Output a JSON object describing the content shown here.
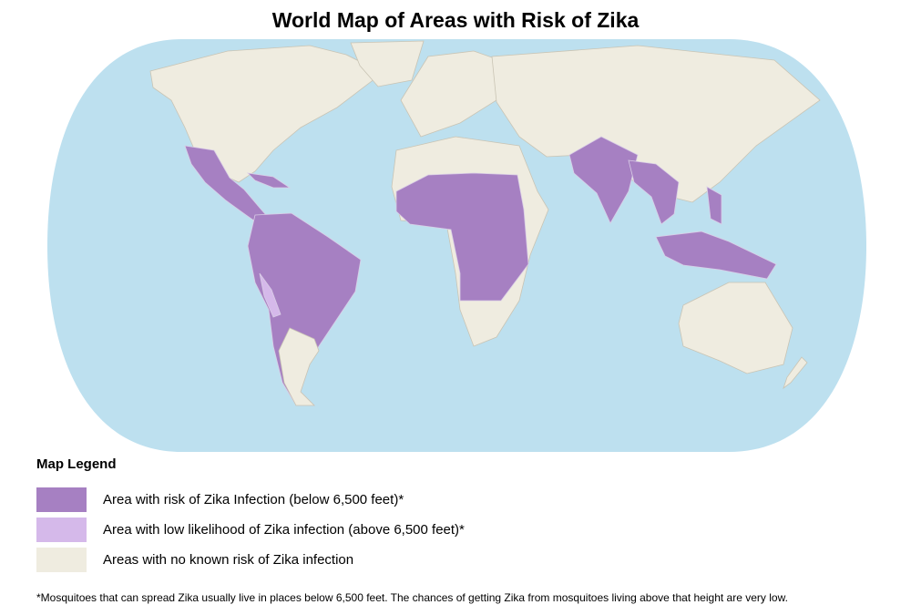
{
  "title": "World Map of Areas with Risk of Zika",
  "legend": {
    "title": "Map Legend",
    "items": [
      {
        "label": "Area with risk of Zika Infection (below 6,500 feet)*",
        "color": "#a680c2"
      },
      {
        "label": "Area with low likelihood of Zika infection (above 6,500 feet)*",
        "color": "#d5b9ea"
      },
      {
        "label": "Areas with no known risk of Zika infection",
        "color": "#efece0"
      }
    ]
  },
  "footnote": "*Mosquitoes that can spread Zika usually live in places below 6,500 feet. The chances of getting Zika from mosquitoes living above that height are very low."
}
